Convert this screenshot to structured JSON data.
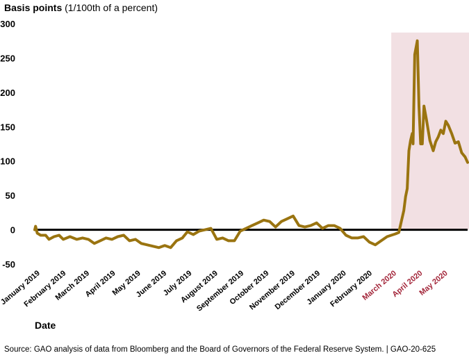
{
  "chart_data": {
    "type": "line",
    "ylabel": "Basis points",
    "ylabel_unit": "(1/100th of a percent)",
    "xlabel": "Date",
    "source": "Source: GAO analysis of data from Bloomberg and the Board of Governors of the Federal Reserve System.  |  GAO-20-625",
    "ylim": [
      -50,
      300
    ],
    "y_ticks": [
      300,
      250,
      200,
      150,
      100,
      50,
      0,
      -50
    ],
    "x_range": [
      "2019-01-01",
      "2020-05-31"
    ],
    "x_ticks": [
      {
        "label": "January 2019",
        "date": "2019-01-01"
      },
      {
        "label": "February 2019",
        "date": "2019-02-01"
      },
      {
        "label": "March 2019",
        "date": "2019-03-01"
      },
      {
        "label": "April 2019",
        "date": "2019-04-01"
      },
      {
        "label": "May 2019",
        "date": "2019-05-01"
      },
      {
        "label": "June 2019",
        "date": "2019-06-01"
      },
      {
        "label": "July 2019",
        "date": "2019-07-01"
      },
      {
        "label": "August 2019",
        "date": "2019-08-01"
      },
      {
        "label": "September 2019",
        "date": "2019-09-01"
      },
      {
        "label": "October 2019",
        "date": "2019-10-01"
      },
      {
        "label": "November 2019",
        "date": "2019-11-01"
      },
      {
        "label": "December 2019",
        "date": "2019-12-01"
      },
      {
        "label": "January 2020",
        "date": "2020-01-01"
      },
      {
        "label": "February 2020",
        "date": "2020-02-01"
      },
      {
        "label": "March 2020",
        "date": "2020-03-01",
        "highlight": true
      },
      {
        "label": "April 2020",
        "date": "2020-04-01",
        "highlight": true
      },
      {
        "label": "May 2020",
        "date": "2020-05-01",
        "highlight": true
      }
    ],
    "highlight_region": {
      "start": "2020-03-01",
      "end": "2020-05-31"
    },
    "zero_line": true,
    "grid": false,
    "colors": {
      "line": "#9a7410",
      "zero_line": "#000000",
      "highlight_fill": "#f2e0e3",
      "highlight_text": "#a3263a"
    },
    "series": [
      {
        "points": [
          [
            "2019-01-01",
            0
          ],
          [
            "2019-01-02",
            5
          ],
          [
            "2019-01-04",
            -5
          ],
          [
            "2019-01-08",
            -8
          ],
          [
            "2019-01-14",
            -8
          ],
          [
            "2019-01-18",
            -14
          ],
          [
            "2019-01-24",
            -10
          ],
          [
            "2019-01-30",
            -8
          ],
          [
            "2019-02-04",
            -14
          ],
          [
            "2019-02-12",
            -10
          ],
          [
            "2019-02-20",
            -14
          ],
          [
            "2019-02-27",
            -12
          ],
          [
            "2019-03-06",
            -14
          ],
          [
            "2019-03-13",
            -20
          ],
          [
            "2019-03-20",
            -16
          ],
          [
            "2019-03-27",
            -12
          ],
          [
            "2019-04-03",
            -14
          ],
          [
            "2019-04-10",
            -10
          ],
          [
            "2019-04-17",
            -8
          ],
          [
            "2019-04-24",
            -16
          ],
          [
            "2019-05-01",
            -14
          ],
          [
            "2019-05-08",
            -20
          ],
          [
            "2019-05-15",
            -22
          ],
          [
            "2019-05-22",
            -24
          ],
          [
            "2019-05-29",
            -26
          ],
          [
            "2019-06-05",
            -23
          ],
          [
            "2019-06-12",
            -26
          ],
          [
            "2019-06-19",
            -16
          ],
          [
            "2019-06-26",
            -12
          ],
          [
            "2019-07-02",
            -3
          ],
          [
            "2019-07-09",
            -7
          ],
          [
            "2019-07-16",
            -2
          ],
          [
            "2019-07-23",
            0
          ],
          [
            "2019-07-30",
            2
          ],
          [
            "2019-08-06",
            -14
          ],
          [
            "2019-08-13",
            -12
          ],
          [
            "2019-08-20",
            -16
          ],
          [
            "2019-08-27",
            -16
          ],
          [
            "2019-09-03",
            -2
          ],
          [
            "2019-09-10",
            2
          ],
          [
            "2019-09-17",
            6
          ],
          [
            "2019-09-24",
            10
          ],
          [
            "2019-10-01",
            14
          ],
          [
            "2019-10-08",
            12
          ],
          [
            "2019-10-15",
            4
          ],
          [
            "2019-10-22",
            12
          ],
          [
            "2019-10-29",
            16
          ],
          [
            "2019-11-05",
            20
          ],
          [
            "2019-11-12",
            6
          ],
          [
            "2019-11-19",
            4
          ],
          [
            "2019-11-26",
            6
          ],
          [
            "2019-12-03",
            10
          ],
          [
            "2019-12-10",
            2
          ],
          [
            "2019-12-17",
            6
          ],
          [
            "2019-12-24",
            6
          ],
          [
            "2019-12-31",
            2
          ],
          [
            "2020-01-07",
            -8
          ],
          [
            "2020-01-14",
            -12
          ],
          [
            "2020-01-21",
            -12
          ],
          [
            "2020-01-28",
            -10
          ],
          [
            "2020-02-04",
            -18
          ],
          [
            "2020-02-11",
            -22
          ],
          [
            "2020-02-18",
            -16
          ],
          [
            "2020-02-25",
            -10
          ],
          [
            "2020-03-01",
            -8
          ],
          [
            "2020-03-06",
            -6
          ],
          [
            "2020-03-10",
            -4
          ],
          [
            "2020-03-13",
            12
          ],
          [
            "2020-03-16",
            28
          ],
          [
            "2020-03-18",
            48
          ],
          [
            "2020-03-20",
            60
          ],
          [
            "2020-03-22",
            115
          ],
          [
            "2020-03-24",
            130
          ],
          [
            "2020-03-26",
            140
          ],
          [
            "2020-03-27",
            125
          ],
          [
            "2020-03-29",
            255
          ],
          [
            "2020-04-01",
            275
          ],
          [
            "2020-04-03",
            180
          ],
          [
            "2020-04-05",
            125
          ],
          [
            "2020-04-07",
            125
          ],
          [
            "2020-04-09",
            180
          ],
          [
            "2020-04-12",
            160
          ],
          [
            "2020-04-16",
            130
          ],
          [
            "2020-04-20",
            115
          ],
          [
            "2020-04-23",
            128
          ],
          [
            "2020-04-26",
            135
          ],
          [
            "2020-04-29",
            145
          ],
          [
            "2020-05-02",
            140
          ],
          [
            "2020-05-05",
            158
          ],
          [
            "2020-05-08",
            152
          ],
          [
            "2020-05-12",
            140
          ],
          [
            "2020-05-16",
            126
          ],
          [
            "2020-05-20",
            128
          ],
          [
            "2020-05-24",
            112
          ],
          [
            "2020-05-28",
            106
          ],
          [
            "2020-05-31",
            98
          ]
        ]
      }
    ]
  }
}
